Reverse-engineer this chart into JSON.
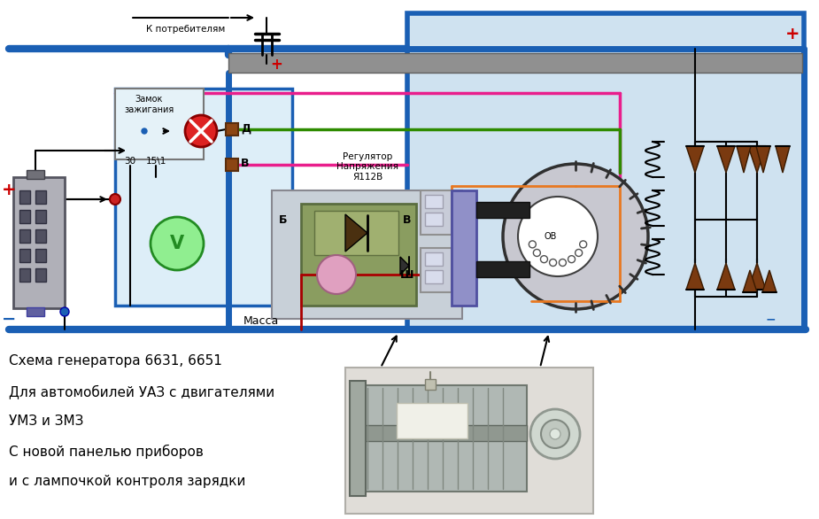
{
  "bg_color": "#ffffff",
  "circuit_bg": "#cfe2f0",
  "circuit_bg_left": "#ddeef8",
  "title_lines": [
    "Схема генератора 6631, 6651",
    "Для автомобилей УАЗ с двигателями",
    "УМЗ и ЗМЗ",
    "С новой панелью приборов",
    "и с лампочкой контроля зарядки"
  ],
  "label_k_potrebitelyam": "К потребителям",
  "label_massa": "Масса",
  "label_zamok": "Замок\nзажигания",
  "label_30": "30",
  "label_15_1": "15\\1",
  "label_d": "Д",
  "label_v": "В",
  "label_b": "Б",
  "label_v2": "В",
  "label_sh": "Ш",
  "label_regulator": "Регулятор\nНапряжения\nЯ112В",
  "label_ov": "ОВ",
  "label_plus_left": "+",
  "label_minus_left": "−",
  "label_plus_right": "+",
  "label_minus_right": "−",
  "color_blue_thick": "#1a5fb4",
  "color_green": "#2e8b00",
  "color_pink": "#e91e8c",
  "color_orange": "#e87820",
  "color_gray_bus": "#808080",
  "color_red_plus": "#cc0000",
  "color_black": "#000000",
  "color_brown": "#7a3a10",
  "color_regulator_bg": "#8a9d60",
  "color_light_blue_panel": "#cde8f5",
  "color_dark_red": "#aa0000"
}
